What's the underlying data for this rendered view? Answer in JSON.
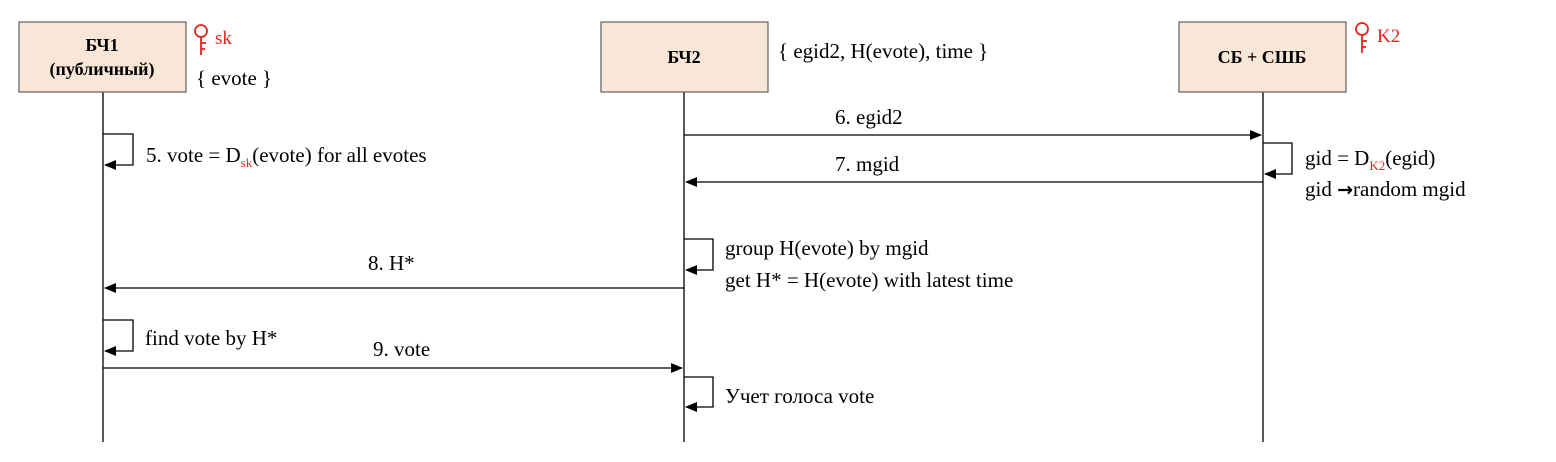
{
  "colors": {
    "box_fill": "#f8e6d6",
    "box_stroke": "#6b6b6b",
    "line": "#000000",
    "key": "#e8231e"
  },
  "participants": {
    "bc1": {
      "name": "БЧ1",
      "sub": "(публичный)",
      "key_label": "sk",
      "store": "{  evote }"
    },
    "bc2": {
      "name": "БЧ2",
      "store": "{  egid2, H(evote), time }"
    },
    "sb": {
      "name": "СБ + СШБ",
      "key_label": "K2"
    }
  },
  "steps": {
    "s5": {
      "prefix": "5. vote = D",
      "sub": "sk",
      "suffix": "(evote) for all evotes"
    },
    "s6": {
      "label": "6. egid2"
    },
    "s7": {
      "label": "7. mgid"
    },
    "sb_note": {
      "line1_prefix": "gid = D",
      "line1_sub": "K2",
      "line1_suffix": "(egid)",
      "line2_prefix": "gid ",
      "line2_arrow": "→",
      "line2_suffix": "random mgid"
    },
    "bc2_note": {
      "line1": "group H(evote) by mgid",
      "line2": "get H* = H(evote) with latest time"
    },
    "s8": {
      "label": "8. H*"
    },
    "find": {
      "label": "find vote by H*"
    },
    "s9": {
      "label": "9. vote"
    },
    "count": {
      "label": "Учет голоса vote"
    }
  }
}
